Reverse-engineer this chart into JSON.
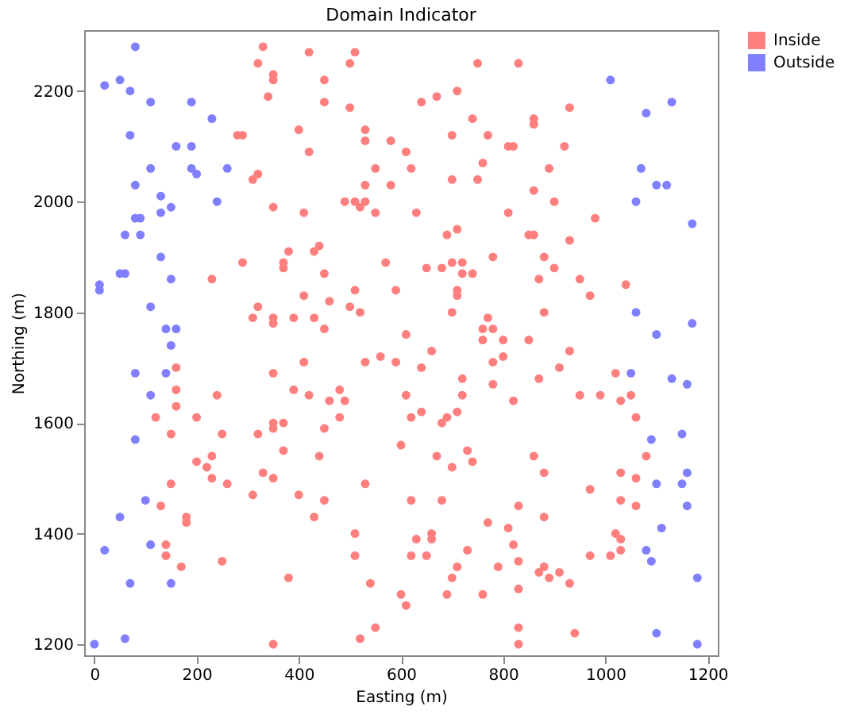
{
  "chart_data": {
    "type": "scatter",
    "title": "Domain Indicator",
    "xlabel": "Easting (m)",
    "ylabel": "Northing (m)",
    "xlim": [
      -20,
      1220
    ],
    "ylim": [
      1180,
      2310
    ],
    "xticks": [
      0,
      200,
      400,
      600,
      800,
      1000,
      1200
    ],
    "yticks": [
      1200,
      1400,
      1600,
      1800,
      2000,
      2200
    ],
    "grid": false,
    "legend": "right",
    "marker": "circle",
    "series": [
      {
        "name": "Inside",
        "color": "#ff7f7f",
        "x": [
          330,
          420,
          510,
          320,
          500,
          350,
          350,
          450,
          340,
          450,
          500,
          400,
          530,
          280,
          290,
          420,
          530,
          580,
          610,
          550,
          320,
          310,
          530,
          580,
          490,
          510,
          530,
          520,
          350,
          410,
          550,
          440,
          430,
          380,
          290,
          370,
          370,
          570,
          450,
          230,
          510,
          590,
          410,
          460,
          320,
          500,
          520,
          310,
          350,
          350,
          390,
          430,
          450,
          610,
          750,
          830,
          640,
          670,
          710,
          930,
          740,
          860,
          860,
          700,
          770,
          810,
          820,
          920,
          760,
          620,
          890,
          700,
          750,
          860,
          900,
          630,
          810,
          980,
          710,
          690,
          850,
          860,
          930,
          780,
          880,
          700,
          720,
          650,
          680,
          900,
          720,
          740,
          870,
          950,
          1040,
          710,
          710,
          970,
          700,
          880,
          770,
          760,
          780,
          760,
          800,
          850,
          560,
          410,
          530,
          590,
          160,
          350,
          160,
          480,
          390,
          240,
          420,
          610,
          460,
          490,
          160,
          120,
          200,
          480,
          350,
          370,
          350,
          150,
          250,
          320,
          450,
          600,
          370,
          440,
          200,
          230,
          220,
          330,
          230,
          350,
          150,
          260,
          530,
          310,
          400,
          450,
          130,
          430,
          180,
          180,
          510,
          140,
          140,
          250,
          170,
          510,
          380,
          540,
          600,
          610,
          550,
          520,
          350,
          660,
          640,
          720,
          780,
          780,
          800,
          870,
          910,
          930,
          1020,
          720,
          950,
          990,
          1030,
          1050,
          820,
          620,
          640,
          680,
          690,
          710,
          1060,
          670,
          700,
          730,
          740,
          860,
          880,
          1030,
          1060,
          1080,
          970,
          620,
          680,
          830,
          1030,
          1060,
          880,
          770,
          810,
          660,
          660,
          630,
          820,
          1020,
          1030,
          730,
          620,
          650,
          970,
          1010,
          1030,
          830,
          710,
          790,
          880,
          870,
          700,
          890,
          910,
          930,
          830,
          690,
          760,
          830,
          940,
          830
        ],
        "values": [
          2280,
          2270,
          2270,
          2250,
          2250,
          2230,
          2220,
          2220,
          2190,
          2180,
          2170,
          2130,
          2130,
          2120,
          2120,
          2090,
          2110,
          2110,
          2090,
          2060,
          2050,
          2040,
          2030,
          2030,
          2000,
          2000,
          2000,
          1990,
          1990,
          1980,
          1980,
          1920,
          1910,
          1910,
          1890,
          1890,
          1880,
          1890,
          1870,
          1860,
          1840,
          1840,
          1830,
          1820,
          1810,
          1810,
          1800,
          1790,
          1790,
          1780,
          1790,
          1790,
          1770,
          1760,
          2250,
          2250,
          2180,
          2190,
          2200,
          2170,
          2150,
          2150,
          2140,
          2120,
          2120,
          2100,
          2100,
          2100,
          2070,
          2060,
          2060,
          2040,
          2040,
          2020,
          2000,
          1980,
          1980,
          1970,
          1950,
          1940,
          1940,
          1940,
          1930,
          1900,
          1900,
          1890,
          1890,
          1880,
          1880,
          1880,
          1870,
          1870,
          1860,
          1860,
          1850,
          1840,
          1830,
          1830,
          1800,
          1800,
          1790,
          1770,
          1770,
          1750,
          1750,
          1750,
          1720,
          1710,
          1710,
          1710,
          1700,
          1690,
          1660,
          1660,
          1660,
          1650,
          1650,
          1650,
          1640,
          1640,
          1630,
          1610,
          1610,
          1610,
          1600,
          1600,
          1590,
          1580,
          1580,
          1580,
          1590,
          1560,
          1550,
          1540,
          1530,
          1540,
          1520,
          1510,
          1500,
          1500,
          1490,
          1490,
          1490,
          1470,
          1470,
          1460,
          1450,
          1430,
          1430,
          1420,
          1400,
          1380,
          1360,
          1350,
          1340,
          1360,
          1320,
          1310,
          1290,
          1270,
          1230,
          1210,
          1200,
          1730,
          1700,
          1680,
          1670,
          1710,
          1720,
          1680,
          1700,
          1730,
          1690,
          1650,
          1650,
          1650,
          1640,
          1650,
          1640,
          1610,
          1620,
          1600,
          1610,
          1620,
          1610,
          1540,
          1520,
          1550,
          1530,
          1540,
          1510,
          1510,
          1500,
          1540,
          1480,
          1460,
          1460,
          1450,
          1460,
          1450,
          1430,
          1420,
          1410,
          1400,
          1390,
          1390,
          1380,
          1400,
          1390,
          1370,
          1360,
          1360,
          1360,
          1360,
          1370,
          1350,
          1340,
          1340,
          1340,
          1330,
          1320,
          1320,
          1330,
          1310,
          1300,
          1290,
          1290,
          1230,
          1220,
          1200
        ]
      },
      {
        "name": "Outside",
        "color": "#7f7fff",
        "x": [
          80,
          20,
          50,
          70,
          110,
          190,
          230,
          70,
          160,
          190,
          110,
          190,
          200,
          260,
          80,
          130,
          130,
          150,
          240,
          80,
          90,
          60,
          90,
          130,
          50,
          60,
          150,
          10,
          10,
          110,
          140,
          160,
          150,
          80,
          140,
          110,
          80,
          100,
          50,
          110,
          20,
          70,
          150,
          60,
          0,
          1010,
          1080,
          1130,
          1070,
          1100,
          1120,
          1060,
          1170,
          1060,
          1100,
          1170,
          1050,
          1130,
          1160,
          1090,
          1150,
          1160,
          1100,
          1150,
          1160,
          1110,
          1080,
          1090,
          1180,
          1100,
          1180
        ],
        "values": [
          2280,
          2210,
          2220,
          2200,
          2180,
          2180,
          2150,
          2120,
          2100,
          2100,
          2060,
          2060,
          2050,
          2060,
          2030,
          2010,
          1980,
          1990,
          2000,
          1970,
          1970,
          1940,
          1940,
          1900,
          1870,
          1870,
          1860,
          1850,
          1840,
          1810,
          1770,
          1770,
          1740,
          1690,
          1690,
          1650,
          1570,
          1460,
          1430,
          1380,
          1370,
          1310,
          1310,
          1210,
          1200,
          2220,
          2160,
          2180,
          2060,
          2030,
          2030,
          2000,
          1960,
          1800,
          1760,
          1780,
          1690,
          1680,
          1670,
          1570,
          1580,
          1510,
          1490,
          1490,
          1450,
          1410,
          1370,
          1350,
          1320,
          1220,
          1200
        ]
      }
    ]
  }
}
